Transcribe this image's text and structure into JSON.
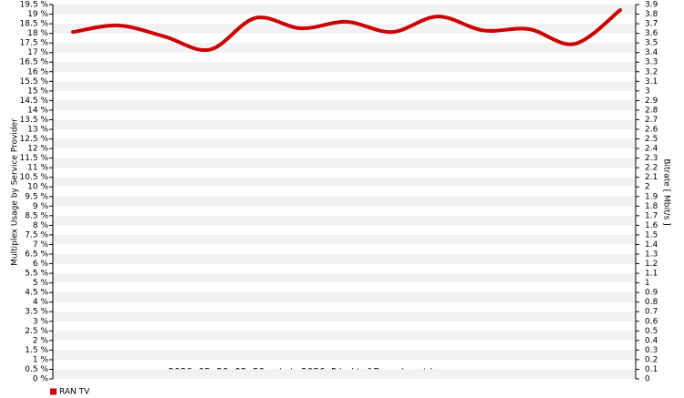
{
  "chart_data": {
    "type": "line",
    "footer": "2026-05-20 02:59, (c) 2026 DigitalBroadcasting.org",
    "y_label": "Multiplex Usage by Service Provider",
    "y2_label": "Bitrate [ Mbit/s ]",
    "categories": [
      null,
      null,
      null,
      null,
      null,
      null,
      null,
      null,
      null,
      null,
      null,
      null,
      null
    ],
    "series": [
      {
        "name": "RAN TV",
        "color": "#cc0000",
        "values": [
          18.07,
          18.41,
          17.84,
          17.15,
          18.8,
          18.26,
          18.6,
          18.07,
          18.88,
          18.15,
          18.22,
          17.45,
          19.21
        ]
      }
    ],
    "ylim": [
      0,
      19.5
    ],
    "yticks": [
      {
        "value": 0,
        "label": "0 %"
      },
      {
        "value": 0.5,
        "label": "0.5 %"
      },
      {
        "value": 1,
        "label": "1 %"
      },
      {
        "value": 1.5,
        "label": "1.5 %"
      },
      {
        "value": 2,
        "label": "2 %"
      },
      {
        "value": 2.5,
        "label": "2.5 %"
      },
      {
        "value": 3,
        "label": "3 %"
      },
      {
        "value": 3.5,
        "label": "3.5 %"
      },
      {
        "value": 4,
        "label": "4 %"
      },
      {
        "value": 4.5,
        "label": "4.5 %"
      },
      {
        "value": 5,
        "label": "5 %"
      },
      {
        "value": 5.5,
        "label": "5.5 %"
      },
      {
        "value": 6,
        "label": "6 %"
      },
      {
        "value": 6.5,
        "label": "6.5 %"
      },
      {
        "value": 7,
        "label": "7 %"
      },
      {
        "value": 7.5,
        "label": "7.5 %"
      },
      {
        "value": 8,
        "label": "8 %"
      },
      {
        "value": 8.5,
        "label": "8.5 %"
      },
      {
        "value": 9,
        "label": "9 %"
      },
      {
        "value": 9.5,
        "label": "9.5 %"
      },
      {
        "value": 10,
        "label": "10 %"
      },
      {
        "value": 10.5,
        "label": "10.5 %"
      },
      {
        "value": 11,
        "label": "11 %"
      },
      {
        "value": 11.5,
        "label": "11.5 %"
      },
      {
        "value": 12,
        "label": "12 %"
      },
      {
        "value": 12.5,
        "label": "12.5 %"
      },
      {
        "value": 13,
        "label": "13 %"
      },
      {
        "value": 13.5,
        "label": "13.5 %"
      },
      {
        "value": 14,
        "label": "14 %"
      },
      {
        "value": 14.5,
        "label": "14.5 %"
      },
      {
        "value": 15,
        "label": "15 %"
      },
      {
        "value": 15.5,
        "label": "15.5 %"
      },
      {
        "value": 16,
        "label": "16 %"
      },
      {
        "value": 16.5,
        "label": "16.5 %"
      },
      {
        "value": 17,
        "label": "17 %"
      },
      {
        "value": 17.5,
        "label": "17.5 %"
      },
      {
        "value": 18,
        "label": "18 %"
      },
      {
        "value": 18.5,
        "label": "18.5 %"
      },
      {
        "value": 19,
        "label": "19 %"
      },
      {
        "value": 19.5,
        "label": "19.5 %"
      }
    ],
    "y2lim": [
      0,
      3.9
    ],
    "y2ticks": [
      0,
      0.1,
      0.2,
      0.3,
      0.4,
      0.5,
      0.6,
      0.7,
      0.8,
      0.9,
      1,
      1.1,
      1.2,
      1.3,
      1.4,
      1.5,
      1.6,
      1.7,
      1.8,
      1.9,
      2,
      2.1,
      2.2,
      2.3,
      2.4,
      2.5,
      2.6,
      2.7,
      2.8,
      2.9,
      3,
      3.1,
      3.2,
      3.3,
      3.4,
      3.5,
      3.6,
      3.7,
      3.8,
      3.9
    ],
    "grid": "bands"
  }
}
